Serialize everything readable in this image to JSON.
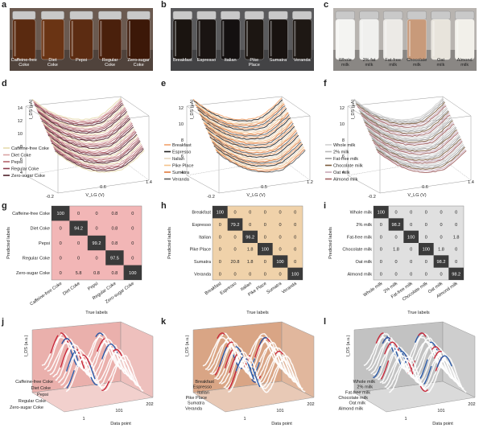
{
  "panels": {
    "a": {
      "letter": "a",
      "labels": [
        "Caffeine-free\nCoke",
        "Diet\nCoke",
        "Pepsi",
        "Regular\nCoke",
        "Zero-sugar\nCoke"
      ]
    },
    "b": {
      "letter": "b",
      "labels": [
        "Breakfast",
        "Espresso",
        "Italian",
        "Pike\nPlace",
        "Sumatra",
        "Veranda"
      ]
    },
    "c": {
      "letter": "c",
      "labels": [
        "Whole\nmilk",
        "2% fat\nmilk",
        "Fat-free\nmilk",
        "Chocolate\nmilk",
        "Oat\nmilk",
        "Almond\nmilk"
      ]
    },
    "d": {
      "letter": "d",
      "zlabel": "I_DS (μA)",
      "xlabel": "V_LG (V)",
      "zticks": [
        "14",
        "12",
        "10",
        "8",
        "6",
        "4"
      ],
      "xticks": [
        "-0.2",
        "0.6",
        "1.4"
      ],
      "legend": [
        "Caffeine-free Coke",
        "Diet Coke",
        "Pepsi",
        "Regular Coke",
        "Zero-sugar Coke"
      ]
    },
    "e": {
      "letter": "e",
      "zlabel": "I_DS (μA)",
      "xlabel": "V_LG (V)",
      "zticks": [
        "12",
        "10",
        "8",
        "6",
        "4"
      ],
      "xticks": [
        "-0.2",
        "0.5",
        "1.2"
      ],
      "legend": [
        "Breakfast",
        "Espresso",
        "Italian",
        "Pike Place",
        "Sumatra",
        "Veranda"
      ]
    },
    "f": {
      "letter": "f",
      "zlabel": "I_DS (μA)",
      "xlabel": "V_LG (V)",
      "zticks": [
        "12",
        "10",
        "8",
        "6",
        "4"
      ],
      "xticks": [
        "-0.2",
        "0.6",
        "1.4"
      ],
      "legend": [
        "Whole milk",
        "2% milk",
        "Fat-free milk",
        "Chocolate milk",
        "Oat milk",
        "Almond milk"
      ]
    },
    "g": {
      "letter": "g",
      "ylabel": "Predicted labels",
      "xlabel": "True labels",
      "rows": [
        "Caffeine-free Coke",
        "Diet Coke",
        "Pepsi",
        "Regular Coke",
        "Zero-sugar Coke"
      ],
      "cols": [
        "Caffeine-free\nCoke",
        "Diet\nCoke",
        "Pepsi",
        "Regular\nCoke",
        "Zero-sugar\nCoke"
      ],
      "matrix": [
        [
          "100",
          "0",
          "0",
          "0.8",
          "0"
        ],
        [
          "0",
          "94.2",
          "0",
          "0.8",
          "0"
        ],
        [
          "0",
          "0",
          "99.2",
          "0.8",
          "0"
        ],
        [
          "0",
          "0",
          "0",
          "97.5",
          "0"
        ],
        [
          "0",
          "5.8",
          "0.8",
          "0.8",
          "100"
        ]
      ]
    },
    "h": {
      "letter": "h",
      "ylabel": "Predicted labels",
      "xlabel": "True labels",
      "rows": [
        "Breakfast",
        "Espresso",
        "Italian",
        "Pike Place",
        "Sumatra",
        "Veranda"
      ],
      "cols": [
        "Breakfast",
        "Espresso",
        "Italian",
        "Pike Place",
        "Sumatra",
        "Veranda"
      ],
      "matrix": [
        [
          "100",
          "0",
          "0",
          "0",
          "0",
          "0"
        ],
        [
          "0",
          "79.2",
          "0",
          "0",
          "0",
          "0"
        ],
        [
          "0",
          "0",
          "96.2",
          "0",
          "0",
          "0"
        ],
        [
          "0",
          "0",
          "1.8",
          "100",
          "0",
          "0"
        ],
        [
          "0",
          "20.8",
          "1.8",
          "0",
          "100",
          "0"
        ],
        [
          "0",
          "0",
          "0",
          "0",
          "0",
          "100"
        ]
      ]
    },
    "i": {
      "letter": "i",
      "ylabel": "Predicted labels",
      "xlabel": "True labels",
      "rows": [
        "Whole milk",
        "2% milk",
        "Fat-free milk",
        "Chocolate milk",
        "Oat milk",
        "Almond milk"
      ],
      "cols": [
        "Whole milk",
        "2% milk",
        "Fat-free milk",
        "Chocolate milk",
        "Oat milk",
        "Almond milk"
      ],
      "matrix": [
        [
          "100",
          "0",
          "0",
          "0",
          "0",
          "0"
        ],
        [
          "0",
          "98.2",
          "0",
          "0",
          "0",
          "0"
        ],
        [
          "0",
          "0",
          "100",
          "0",
          "0",
          "1.8"
        ],
        [
          "0",
          "1.8",
          "0",
          "100",
          "1.8",
          "0"
        ],
        [
          "0",
          "0",
          "0",
          "0",
          "98.2",
          "0"
        ],
        [
          "0",
          "0",
          "0",
          "0",
          "0",
          "98.2"
        ]
      ]
    },
    "j": {
      "letter": "j",
      "zlabel": "I_DS (a.u.)",
      "xlabel": "Data point",
      "xticks": [
        "1",
        "101",
        "202"
      ],
      "categories": [
        "Caffeine-free Coke",
        "Diet Coke",
        "Pepsi",
        "Regular Coke",
        "Zero-sugar Coke"
      ]
    },
    "k": {
      "letter": "k",
      "zlabel": "I_DS (a.u.)",
      "xlabel": "Data point",
      "xticks": [
        "1",
        "101",
        "202"
      ],
      "categories": [
        "Breakfast",
        "Espresso",
        "Italian",
        "Pike Place",
        "Sumatra",
        "Veranda"
      ]
    },
    "l": {
      "letter": "l",
      "zlabel": "I_DS (a.u.)",
      "xlabel": "Data point",
      "xticks": [
        "1",
        "101",
        "202"
      ],
      "categories": [
        "Whole milk",
        "2% milk",
        "Fat-free milk",
        "Chocolate milk",
        "Oat milk",
        "Almond milk"
      ]
    }
  },
  "colors": {
    "coke": [
      "#e6dcae",
      "#d9a3a3",
      "#b4646c",
      "#8a3c4c",
      "#4d2028"
    ],
    "coffee": [
      "#f2a26a",
      "#222222",
      "#e8d7c0",
      "#f4c38c",
      "#e07a3c",
      "#5a5a5a"
    ],
    "milk": [
      "#d0d0d0",
      "#b8b8b8",
      "#9a9a9a",
      "#7a5a3c",
      "#c8a8b8",
      "#a06060"
    ],
    "g_bg": "#f2b6b6",
    "h_bg": "#f0d2aa",
    "i_bg": "#e0e0e0",
    "j_bg": "#eab0ac",
    "k_bg": "#d9a585",
    "l_bg": "#c2c2c2"
  }
}
